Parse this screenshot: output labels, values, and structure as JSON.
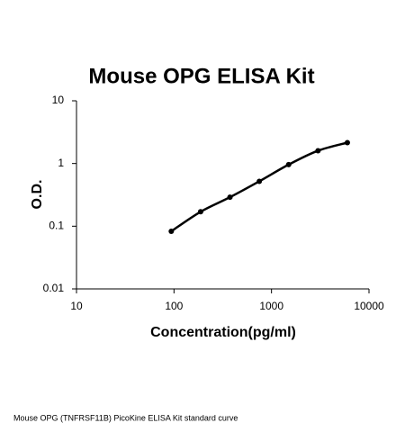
{
  "chart_data": {
    "type": "scatter",
    "title": "Mouse OPG ELISA Kit",
    "x_label": "Concentration(pg/ml)",
    "y_label": "O.D.",
    "footnote": "Mouse OPG (TNFRSF11B) PicoKine ELISA Kit standard curve",
    "xlog": true,
    "ylog": true,
    "xlim": [
      10,
      10000
    ],
    "ylim": [
      0.01,
      10
    ],
    "xticks": [
      10,
      100,
      1000,
      10000
    ],
    "yticks": [
      0.01,
      0.1,
      1,
      10
    ],
    "series": [
      {
        "color": "#000000",
        "x": [
          93.75,
          187.5,
          375,
          750,
          1500,
          3000,
          6000
        ],
        "values": [
          0.083,
          0.17,
          0.29,
          0.52,
          0.96,
          1.6,
          2.15
        ]
      }
    ]
  }
}
